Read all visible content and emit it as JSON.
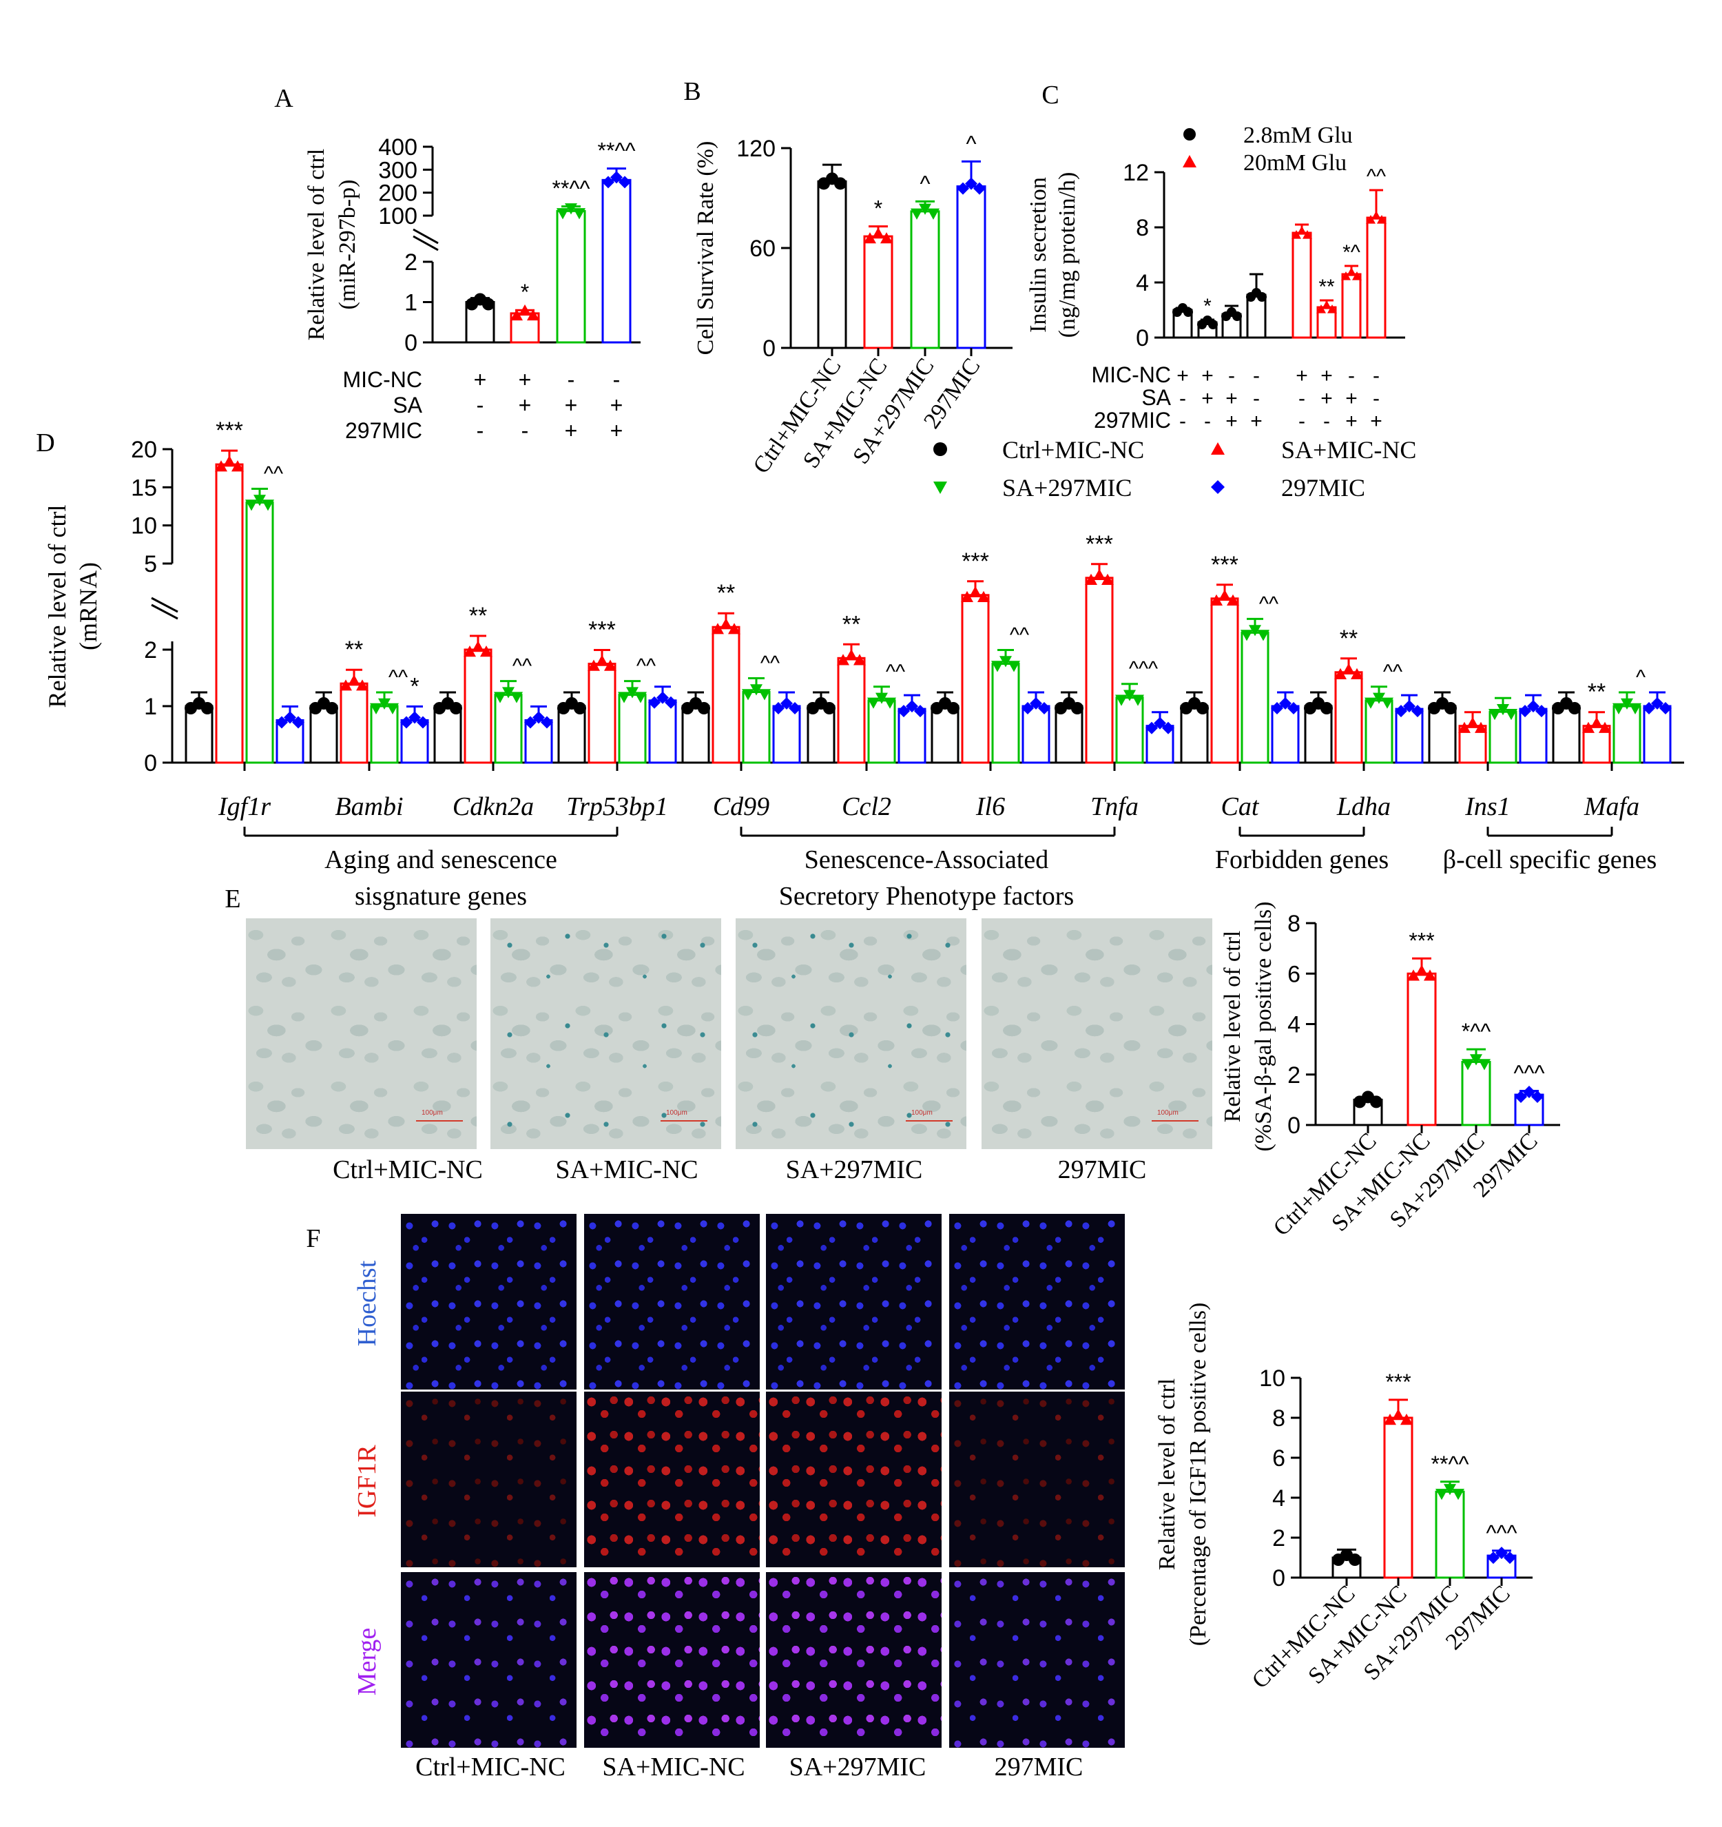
{
  "panel_letters": [
    "A",
    "B",
    "C",
    "D",
    "E",
    "F"
  ],
  "chart_data": [
    {
      "panel": "A",
      "type": "bar",
      "ylabel": [
        "Relative level of ctrl",
        "(miR-297b-p)"
      ],
      "ylim_low": [
        0,
        2
      ],
      "ylim_high": [
        100,
        400
      ],
      "yticks_low": [
        "0",
        "1",
        "2"
      ],
      "yticks_high": [
        "100",
        "200",
        "300",
        "400"
      ],
      "conditions": [
        {
          "name": "MIC-NC",
          "signs": [
            "+",
            "+",
            "-",
            "-"
          ]
        },
        {
          "name": "SA",
          "signs": [
            "-",
            "+",
            "+",
            "+"
          ]
        },
        {
          "name": "297MIC",
          "signs": [
            "-",
            "-",
            "+",
            "+"
          ]
        }
      ],
      "values": [
        1.0,
        0.72,
        120,
        255
      ],
      "errors": [
        0.1,
        0.08,
        20,
        50
      ],
      "significance": [
        "",
        "*",
        "**^^",
        "**^^"
      ]
    },
    {
      "panel": "B",
      "type": "bar",
      "ylabel": "Cell Survival Rate (%)",
      "ylim": [
        0,
        120
      ],
      "yticks": [
        "0",
        "60",
        "120"
      ],
      "categories": [
        "Ctrl+MIC-NC",
        "SA+MIC-NC",
        "SA+297MIC",
        "297MIC"
      ],
      "values": [
        100,
        67,
        82,
        97
      ],
      "errors": [
        10,
        6,
        6,
        15
      ],
      "significance": [
        "",
        "*",
        "^",
        "^"
      ]
    },
    {
      "panel": "C",
      "type": "bar",
      "ylabel": [
        "Insulin secretion",
        "(ng/mg protein/h)"
      ],
      "ylim": [
        0,
        12
      ],
      "yticks": [
        "0",
        "4",
        "8",
        "12"
      ],
      "legend": [
        "2.8mM Glu",
        "20mM Glu"
      ],
      "conditions": [
        {
          "name": "MIC-NC",
          "signs": [
            "+",
            "+",
            "-",
            "-",
            "+",
            "+",
            "-",
            "-"
          ]
        },
        {
          "name": "SA",
          "signs": [
            "-",
            "+",
            "+",
            "-",
            "-",
            "+",
            "+",
            "-"
          ]
        },
        {
          "name": "297MIC",
          "signs": [
            "-",
            "-",
            "+",
            "+",
            "-",
            "-",
            "+",
            "+"
          ]
        }
      ],
      "values": [
        2.0,
        1.1,
        1.7,
        3.1,
        7.6,
        2.2,
        4.6,
        8.7
      ],
      "errors": [
        0.15,
        0.2,
        0.6,
        1.5,
        0.6,
        0.5,
        0.6,
        2.0
      ],
      "significance": [
        "",
        "*",
        "",
        "",
        "",
        "**",
        "*^",
        "^^"
      ]
    },
    {
      "panel": "D",
      "type": "bar",
      "ylabel": [
        "Relative level of ctrl",
        "(mRNA)"
      ],
      "yticks_low": [
        "0",
        "1",
        "2"
      ],
      "yticks_high": [
        "5",
        "10",
        "15",
        "20"
      ],
      "legend": [
        "Ctrl+MIC-NC",
        "SA+MIC-NC",
        "SA+297MIC",
        "297MIC"
      ],
      "genes": [
        "Igf1r",
        "Bambi",
        "Cdkn2a",
        "Trp53bp1",
        "Cd99",
        "Ccl2",
        "Il6",
        "Tnfa",
        "Cat",
        "Ldha",
        "Ins1",
        "Mafa"
      ],
      "series": [
        {
          "name": "Ctrl+MIC-NC",
          "values": [
            1.0,
            1.0,
            1.0,
            1.0,
            1.0,
            1.0,
            1.0,
            1.0,
            1.0,
            1.0,
            1.0,
            1.0
          ]
        },
        {
          "name": "SA+MIC-NC",
          "values": [
            18.0,
            1.4,
            2.0,
            1.75,
            2.4,
            1.85,
            3.2,
            3.7,
            3.1,
            1.6,
            0.65,
            0.65
          ]
        },
        {
          "name": "SA+297MIC",
          "values": [
            13.0,
            1.0,
            1.2,
            1.2,
            1.25,
            1.1,
            1.75,
            1.15,
            2.3,
            1.1,
            0.9,
            1.0
          ]
        },
        {
          "name": "297MIC",
          "values": [
            0.75,
            0.75,
            0.75,
            1.1,
            1.0,
            0.95,
            1.0,
            0.65,
            1.0,
            0.95,
            0.95,
            1.0
          ]
        }
      ],
      "significance": [
        [
          "***",
          "^^"
        ],
        [
          "**",
          "^^"
        ],
        [
          "**",
          "^^"
        ],
        [
          "***",
          "^^"
        ],
        [
          "**",
          "^^"
        ],
        [
          "**",
          "^^"
        ],
        [
          "***",
          "^^"
        ],
        [
          "***",
          "^^^"
        ],
        [
          "***",
          "^^"
        ],
        [
          "**",
          "^^"
        ],
        [
          "",
          ""
        ],
        [
          "**",
          "^"
        ]
      ],
      "extra_marks": [
        {
          "gene": "Bambi",
          "series": "297MIC",
          "mark": "*"
        }
      ],
      "groups": [
        {
          "label": [
            "Aging and senescence",
            "sisgnature genes"
          ]
        },
        {
          "label": [
            "Senescence-Associated",
            "Secretory Phenotype factors"
          ]
        },
        {
          "label": [
            "Forbidden genes"
          ]
        },
        {
          "label": [
            "β-cell specific genes"
          ]
        }
      ]
    },
    {
      "panel": "E",
      "type": "bar",
      "ylabel": [
        "Relative level of ctrl",
        "(%SA-β-gal positive cells)"
      ],
      "ylim": [
        0,
        8
      ],
      "yticks": [
        "0",
        "2",
        "4",
        "6",
        "8"
      ],
      "categories": [
        "Ctrl+MIC-NC",
        "SA+MIC-NC",
        "SA+297MIC",
        "297MIC"
      ],
      "values": [
        1.0,
        6.0,
        2.5,
        1.2
      ],
      "errors": [
        0.1,
        0.6,
        0.5,
        0.15
      ],
      "significance": [
        "",
        "***",
        "*^^",
        "^^^"
      ]
    },
    {
      "panel": "F",
      "type": "bar",
      "ylabel": [
        "Relative level of ctrl",
        "(Percentage of IGF1R positive cells)"
      ],
      "ylim": [
        0,
        10
      ],
      "yticks": [
        "0",
        "2",
        "4",
        "6",
        "8",
        "10"
      ],
      "categories": [
        "Ctrl+MIC-NC",
        "SA+MIC-NC",
        "SA+297MIC",
        "297MIC"
      ],
      "values": [
        1.0,
        8.0,
        4.3,
        1.1
      ],
      "errors": [
        0.4,
        0.9,
        0.5,
        0.25
      ],
      "significance": [
        "",
        "***",
        "**^^",
        "^^^"
      ]
    }
  ],
  "series_colors": {
    "ctrl": "#000000",
    "sa": "#ff0000",
    "sa297": "#00c000",
    "mic297": "#0000ff"
  },
  "micrographs_E": {
    "labels": [
      "Ctrl+MIC-NC",
      "SA+MIC-NC",
      "SA+297MIC",
      "297MIC"
    ],
    "scale_label": "100μm"
  },
  "micrographs_F": {
    "row_labels": [
      "Hoechst",
      "IGF1R",
      "Merge"
    ],
    "row_label_colors": [
      "#2f5fd0",
      "#e0201a",
      "#a020f0"
    ],
    "labels": [
      "Ctrl+MIC-NC",
      "SA+MIC-NC",
      "SA+297MIC",
      "297MIC"
    ]
  }
}
